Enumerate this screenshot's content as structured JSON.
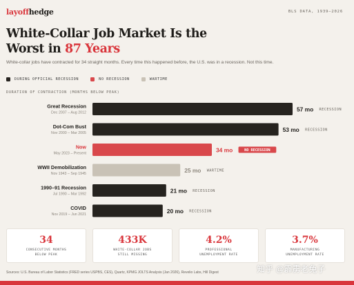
{
  "header": {
    "brand_part1": "layoff",
    "brand_part2": "hedge",
    "source_note": "BLS DATA, 1939–2026"
  },
  "title": {
    "line1": "White-Collar Job Market Is the",
    "line2_prefix": "Worst in",
    "line2_highlight": "87 Years"
  },
  "subtitle": "White-collar jobs have contracted for 34 straight months. Every time this happened before, the U.S. was in a recession. Not this time.",
  "legend": [
    {
      "label": "DURING OFFICIAL RECESSION",
      "color": "#26231f"
    },
    {
      "label": "NO RECESSION",
      "color": "#d9484b"
    },
    {
      "label": "WARTIME",
      "color": "#c9c2b6"
    }
  ],
  "axis_note": "DURATION OF CONTRACTION (MONTHS BELOW PEAK)",
  "chart_data": {
    "type": "bar",
    "orientation": "horizontal",
    "xlabel": "DURATION OF CONTRACTION (MONTHS BELOW PEAK)",
    "xlim": [
      0,
      57
    ],
    "value_suffix": " mo",
    "grid": false,
    "legend_position": "top-left",
    "bars": [
      {
        "name": "Great Recession",
        "dates": "Dec 2007 – Aug 2012",
        "value": 57,
        "kind": "recession",
        "tag": "RECESSION"
      },
      {
        "name": "Dot-Com Bust",
        "dates": "Nov 2000 – Mar 2005",
        "value": 53,
        "kind": "recession",
        "tag": "RECESSION"
      },
      {
        "name": "Now",
        "dates": "May 2023 – Present",
        "value": 34,
        "kind": "no_recession",
        "tag": "NO RECESSION"
      },
      {
        "name": "WWII Demobilization",
        "dates": "Nov 1943 – Sep 1945",
        "value": 25,
        "kind": "wartime",
        "tag": "WARTIME"
      },
      {
        "name": "1990–91 Recession",
        "dates": "Jul 1990 – Mar 1992",
        "value": 21,
        "kind": "recession",
        "tag": "RECESSION"
      },
      {
        "name": "COVID",
        "dates": "Nov 2019 – Jun 2021",
        "value": 20,
        "kind": "recession",
        "tag": "RECESSION"
      }
    ],
    "colors": {
      "recession": "#26231f",
      "no_recession": "#d9484b",
      "wartime": "#c9c2b6",
      "highlight_text": "#d9353b",
      "muted_text": "#8a847b"
    }
  },
  "cards": [
    {
      "value": "34",
      "label": "CONSECUTIVE MONTHS\nBELOW PEAK"
    },
    {
      "value": "433K",
      "label": "WHITE-COLLAR JOBS\nSTILL MISSING"
    },
    {
      "value": "4.2%",
      "label": "PROFESSIONAL\nUNEMPLOYMENT RATE"
    },
    {
      "value": "3.7%",
      "label": "MANUFACTURING\nUNEMPLOYMENT RATE"
    }
  ],
  "footer": "Sources: U.S. Bureau of Labor Statistics (FRED series USPBS, CES), Quartz, KPMG JOLTS Analysis (Jan 2026), Revelio Labs, Hill Digest",
  "watermark": "知乎 @霹雳老兔子",
  "colors": {
    "background": "#f4f1ec",
    "accent": "#d9353b",
    "text": "#1f1d1a",
    "muted": "#6a655e"
  }
}
